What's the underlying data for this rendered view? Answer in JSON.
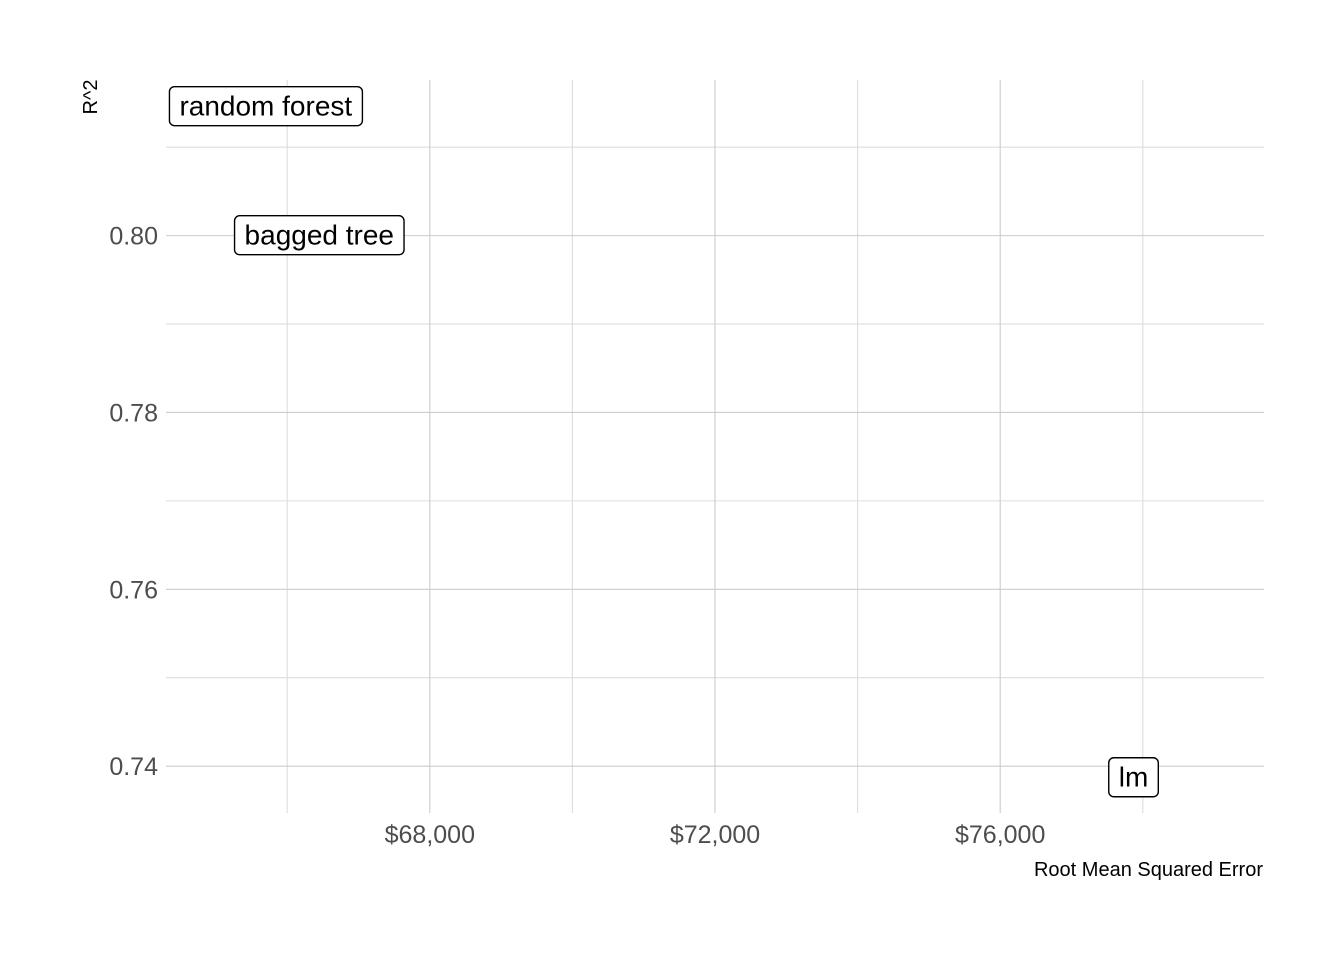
{
  "chart_data": {
    "type": "scatter",
    "title": "",
    "xlabel": "Root Mean Squared Error",
    "ylabel": "R^2",
    "xlim": [
      64300,
      79700
    ],
    "ylim": [
      0.7347,
      0.8176
    ],
    "x_ticks": [
      {
        "value": 68000,
        "label": "$68,000"
      },
      {
        "value": 72000,
        "label": "$72,000"
      },
      {
        "value": 76000,
        "label": "$76,000"
      }
    ],
    "x_minor": [
      66000,
      70000,
      74000,
      78000
    ],
    "y_ticks": [
      {
        "value": 0.74,
        "label": "0.74"
      },
      {
        "value": 0.76,
        "label": "0.76"
      },
      {
        "value": 0.78,
        "label": "0.78"
      },
      {
        "value": 0.8,
        "label": "0.80"
      }
    ],
    "y_minor": [
      0.75,
      0.77,
      0.79,
      0.81
    ],
    "grid": true,
    "points": [
      {
        "label": "random forest",
        "x": 65700,
        "y": 0.8147
      },
      {
        "label": "bagged tree",
        "x": 66450,
        "y": 0.8001
      },
      {
        "label": "lm",
        "x": 77870,
        "y": 0.7388
      }
    ]
  }
}
